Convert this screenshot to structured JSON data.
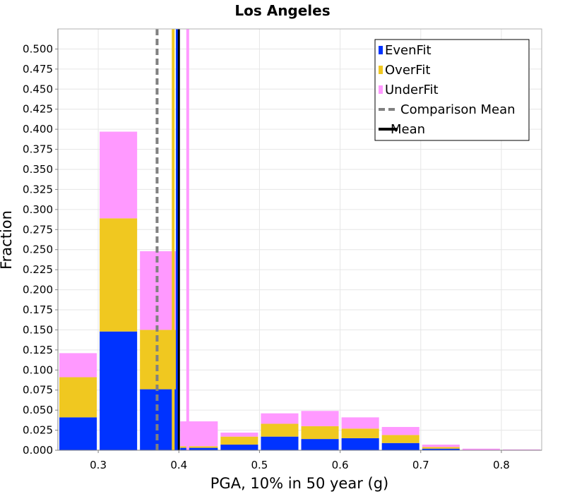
{
  "chart_data": {
    "type": "bar",
    "stacked": true,
    "title": "Los Angeles",
    "xlabel": "PGA, 10% in 50 year (g)",
    "ylabel": "Fraction",
    "xlim": [
      0.25,
      0.85
    ],
    "ylim": [
      0,
      0.525
    ],
    "grid": true,
    "legend_position": "top-right",
    "x_ticks": [
      "0.3",
      "0.4",
      "0.5",
      "0.6",
      "0.7",
      "0.8"
    ],
    "y_ticks": [
      "0.000",
      "0.025",
      "0.050",
      "0.075",
      "0.100",
      "0.125",
      "0.150",
      "0.175",
      "0.200",
      "0.225",
      "0.250",
      "0.275",
      "0.300",
      "0.325",
      "0.350",
      "0.375",
      "0.400",
      "0.425",
      "0.450",
      "0.475",
      "0.500"
    ],
    "bin_width": 0.05,
    "x": [
      0.275,
      0.325,
      0.375,
      0.425,
      0.475,
      0.525,
      0.575,
      0.625,
      0.675,
      0.725,
      0.775,
      0.825
    ],
    "series": [
      {
        "name": "EvenFit",
        "color": "#0033ff",
        "values": [
          0.041,
          0.148,
          0.076,
          0.003,
          0.007,
          0.017,
          0.014,
          0.015,
          0.009,
          0.002,
          0.0,
          0.0
        ]
      },
      {
        "name": "OverFit",
        "color": "#f0c820",
        "values": [
          0.05,
          0.141,
          0.074,
          0.002,
          0.01,
          0.016,
          0.016,
          0.012,
          0.01,
          0.002,
          0.0,
          0.0
        ]
      },
      {
        "name": "UnderFit",
        "color": "#ff99ff",
        "values": [
          0.03,
          0.108,
          0.098,
          0.031,
          0.005,
          0.013,
          0.019,
          0.014,
          0.01,
          0.003,
          0.002,
          0.001
        ]
      }
    ],
    "lines": [
      {
        "name": "Comparison Mean",
        "x": 0.373,
        "color": "#808080",
        "style": "dashed"
      },
      {
        "name": "Mean",
        "x": 0.4,
        "color": "#000000",
        "style": "solid"
      }
    ],
    "extra_vertical_lines": [
      {
        "series": "EvenFit",
        "x": 0.398,
        "color": "#0033ff"
      },
      {
        "series": "OverFit",
        "x": 0.393,
        "color": "#f0c820"
      },
      {
        "series": "UnderFit",
        "x": 0.411,
        "color": "#ff99ff"
      }
    ],
    "legend": [
      "EvenFit",
      "OverFit",
      "UnderFit",
      "Comparison Mean",
      "Mean"
    ]
  }
}
